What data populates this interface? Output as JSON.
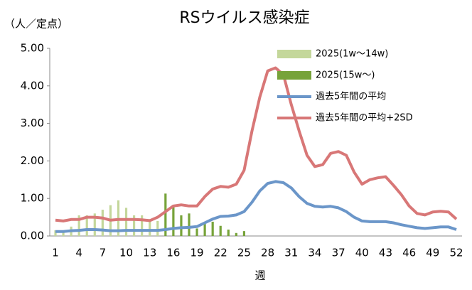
{
  "chart_data": {
    "type": "bar",
    "title": "RSウイルス感染症",
    "y_label": "（人／定点）",
    "x_label": "週",
    "categories": [
      1,
      null,
      null,
      4,
      null,
      null,
      7,
      null,
      null,
      10,
      null,
      null,
      13,
      null,
      null,
      16,
      null,
      null,
      19,
      null,
      null,
      22,
      null,
      null,
      25,
      null,
      null,
      28,
      null,
      null,
      31,
      null,
      null,
      34,
      null,
      null,
      37,
      null,
      null,
      40,
      null,
      null,
      43,
      null,
      null,
      46,
      null,
      null,
      49,
      null,
      null,
      52
    ],
    "ylim": [
      0,
      5
    ],
    "yticks": [
      {
        "value": 0,
        "label": "0.00"
      },
      {
        "value": 1,
        "label": "1.00"
      },
      {
        "value": 2,
        "label": "2.00"
      },
      {
        "value": 3,
        "label": "3.00"
      },
      {
        "value": 4,
        "label": "4.00"
      },
      {
        "value": 5,
        "label": "5.00"
      }
    ],
    "legend": "top-right",
    "series": [
      {
        "name": "2025(1w〜14w)",
        "type": "bar",
        "color": "#c4d79b",
        "values": [
          0.15,
          0.15,
          0.25,
          0.55,
          0.55,
          0.6,
          0.7,
          0.82,
          0.95,
          0.75,
          0.55,
          0.55,
          0.45,
          0.4,
          null,
          null,
          null,
          null,
          null,
          null,
          null,
          null,
          null,
          null,
          null,
          null,
          null,
          null,
          null,
          null,
          null,
          null,
          null,
          null,
          null,
          null,
          null,
          null,
          null,
          null,
          null,
          null,
          null,
          null,
          null,
          null,
          null,
          null,
          null,
          null,
          null,
          null
        ]
      },
      {
        "name": "2025(15w〜)",
        "type": "bar",
        "color": "#77a33a",
        "values": [
          null,
          null,
          null,
          null,
          null,
          null,
          null,
          null,
          null,
          null,
          null,
          null,
          null,
          null,
          1.13,
          0.78,
          0.55,
          0.6,
          0.2,
          0.32,
          0.38,
          0.27,
          0.17,
          0.08,
          0.13,
          null,
          null,
          null,
          null,
          null,
          null,
          null,
          null,
          null,
          null,
          null,
          null,
          null,
          null,
          null,
          null,
          null,
          null,
          null,
          null,
          null,
          null,
          null,
          null,
          null,
          null,
          null
        ]
      },
      {
        "name": "過去5年間の平均",
        "type": "line",
        "color": "#6b96c9",
        "values": [
          0.12,
          0.12,
          0.14,
          0.15,
          0.17,
          0.17,
          0.16,
          0.14,
          0.14,
          0.15,
          0.15,
          0.15,
          0.15,
          0.15,
          0.17,
          0.2,
          0.22,
          0.23,
          0.25,
          0.35,
          0.45,
          0.52,
          0.53,
          0.56,
          0.65,
          0.9,
          1.2,
          1.4,
          1.45,
          1.42,
          1.28,
          1.05,
          0.87,
          0.79,
          0.77,
          0.79,
          0.75,
          0.65,
          0.5,
          0.4,
          0.38,
          0.38,
          0.38,
          0.35,
          0.3,
          0.26,
          0.22,
          0.2,
          0.22,
          0.24,
          0.24,
          0.17
        ]
      },
      {
        "name": "過去5年間の平均+2SD",
        "type": "line",
        "color": "#d87777",
        "values": [
          0.42,
          0.4,
          0.44,
          0.44,
          0.5,
          0.5,
          0.48,
          0.42,
          0.44,
          0.44,
          0.44,
          0.43,
          0.41,
          0.5,
          0.65,
          0.8,
          0.83,
          0.8,
          0.8,
          1.05,
          1.25,
          1.32,
          1.3,
          1.38,
          1.75,
          2.8,
          3.7,
          4.4,
          4.48,
          4.3,
          3.5,
          2.8,
          2.15,
          1.85,
          1.9,
          2.2,
          2.25,
          2.15,
          1.7,
          1.38,
          1.5,
          1.55,
          1.58,
          1.35,
          1.1,
          0.8,
          0.6,
          0.56,
          0.64,
          0.66,
          0.64,
          0.45
        ]
      }
    ]
  }
}
